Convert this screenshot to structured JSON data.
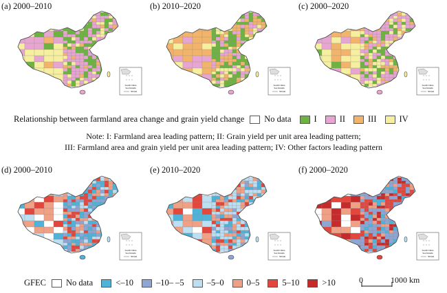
{
  "panels_top": [
    {
      "label": "(a) 2000–2010",
      "variant": 0
    },
    {
      "label": "(b) 2010–2020",
      "variant": 1
    },
    {
      "label": "(c) 2000–2020",
      "variant": 2
    }
  ],
  "panels_bottom": [
    {
      "label": "(d) 2000–2010",
      "variant": 3
    },
    {
      "label": "(e) 2010–2020",
      "variant": 4
    },
    {
      "label": "(f) 2000–2020",
      "variant": 5
    }
  ],
  "inset": {
    "line1": "South China",
    "line2": "Sea Islands",
    "scale": "500 km"
  },
  "legend_top": {
    "title": "Relationship between farmland area change and grain yield change",
    "items": [
      {
        "label": "No data",
        "color": "#ffffff"
      },
      {
        "label": "I",
        "color": "#6db33f"
      },
      {
        "label": "II",
        "color": "#e7a6d1"
      },
      {
        "label": "III",
        "color": "#f2b46b"
      },
      {
        "label": "IV",
        "color": "#f6ef9f"
      }
    ]
  },
  "note": {
    "line1": "Note: I: Farmland area leading pattern; II: Grain yield per unit area leading pattern;",
    "line2": "III: Farmland area and grain yield per unit area leading pattern; IV: Other factors leading pattern"
  },
  "legend_bottom": {
    "title": "GFEC",
    "items": [
      {
        "label": "No data",
        "color": "#ffffff"
      },
      {
        "label": "<–10",
        "color": "#4fb3d9"
      },
      {
        "label": "–10– –5",
        "color": "#8ea6d4"
      },
      {
        "label": "–5–0",
        "color": "#bcdff2"
      },
      {
        "label": "0–5",
        "color": "#f0a085"
      },
      {
        "label": "5–10",
        "color": "#e2463d"
      },
      {
        "label": ">10",
        "color": "#c62a2a"
      }
    ]
  },
  "scalebar": {
    "zero": "0",
    "label": "1000 km"
  }
}
